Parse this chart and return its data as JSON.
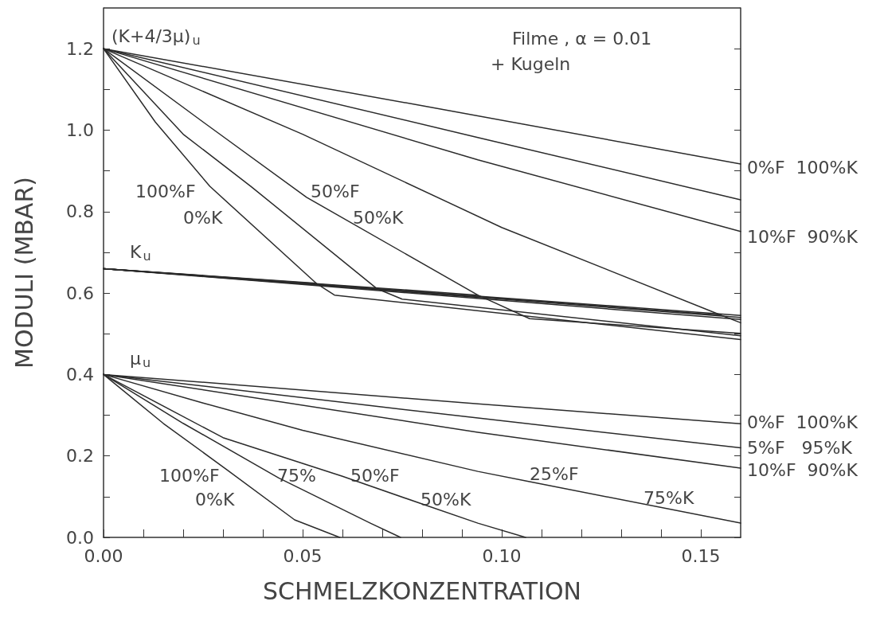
{
  "chart_data": {
    "type": "line",
    "xlabel": "SCHMELZKONZENTRATION",
    "ylabel": "MODULI (MBAR)",
    "xlim": [
      0,
      0.16
    ],
    "ylim": [
      0,
      1.3
    ],
    "xticks": [
      {
        "value": 0,
        "label": "0.00"
      },
      {
        "value": 0.01,
        "label": null
      },
      {
        "value": 0.02,
        "label": null
      },
      {
        "value": 0.03,
        "label": null
      },
      {
        "value": 0.04,
        "label": null
      },
      {
        "value": 0.05,
        "label": "0.05"
      },
      {
        "value": 0.06,
        "label": null
      },
      {
        "value": 0.07,
        "label": null
      },
      {
        "value": 0.08,
        "label": null
      },
      {
        "value": 0.09,
        "label": null
      },
      {
        "value": 0.1,
        "label": "0.10"
      },
      {
        "value": 0.11,
        "label": null
      },
      {
        "value": 0.12,
        "label": null
      },
      {
        "value": 0.13,
        "label": null
      },
      {
        "value": 0.14,
        "label": null
      },
      {
        "value": 0.15,
        "label": "0.15"
      }
    ],
    "yticks": [
      {
        "value": 0,
        "label": "0.0"
      },
      {
        "value": 0.1,
        "label": null
      },
      {
        "value": 0.2,
        "label": "0.2"
      },
      {
        "value": 0.3,
        "label": null
      },
      {
        "value": 0.4,
        "label": "0.4"
      },
      {
        "value": 0.5,
        "label": null
      },
      {
        "value": 0.6,
        "label": "0.6"
      },
      {
        "value": 0.7,
        "label": null
      },
      {
        "value": 0.8,
        "label": "0.8"
      },
      {
        "value": 0.9,
        "label": null
      },
      {
        "value": 1,
        "label": "1.0"
      },
      {
        "value": 1.1,
        "label": null
      },
      {
        "value": 1.2,
        "label": "1.2"
      }
    ],
    "grid": false,
    "marker": "none",
    "line_style": "solid",
    "series": [
      {
        "color": "#2b2b2b",
        "x": [
          0,
          0.08,
          0.16
        ],
        "values": [
          1.2,
          1.06,
          0.917
        ]
      },
      {
        "color": "#2b2b2b",
        "x": [
          0,
          0.094,
          0.16
        ],
        "values": [
          1.2,
          0.982,
          0.829
        ]
      },
      {
        "color": "#2b2b2b",
        "x": [
          0,
          0.094,
          0.16
        ],
        "values": [
          1.2,
          0.927,
          0.751
        ]
      },
      {
        "color": "#2b2b2b",
        "x": [
          0,
          0.05,
          0.1,
          0.155
        ],
        "values": [
          1.2,
          0.99,
          0.761,
          0.546
        ]
      },
      {
        "color": "#2b2b2b",
        "x": [
          0,
          0.025,
          0.051,
          0.094
        ],
        "values": [
          1.2,
          1.02,
          0.835,
          0.595
        ]
      },
      {
        "color": "#2b2b2b",
        "x": [
          0,
          0.02,
          0.037,
          0.0686
        ],
        "values": [
          1.2,
          0.99,
          0.862,
          0.611
        ]
      },
      {
        "color": "#2b2b2b",
        "x": [
          0,
          0.013,
          0.0267,
          0.0534
        ],
        "values": [
          1.2,
          1.02,
          0.862,
          0.624
        ]
      },
      {
        "color": "#2b2b2b",
        "x": [
          0,
          0.16
        ],
        "values": [
          0.66,
          0.545
        ]
      },
      {
        "color": "#2b2b2b",
        "x": [
          0,
          0.16
        ],
        "values": [
          0.66,
          0.54
        ]
      },
      {
        "color": "#2b2b2b",
        "x": [
          0,
          0.16
        ],
        "values": [
          0.66,
          0.535
        ]
      },
      {
        "color": "#2b2b2b",
        "x": [
          0,
          0.155,
          0.16
        ],
        "values": [
          0.66,
          0.546,
          0.527
        ]
      },
      {
        "color": "#2b2b2b",
        "x": [
          0,
          0.094,
          0.107,
          0.16
        ],
        "values": [
          0.66,
          0.595,
          0.537,
          0.501
        ]
      },
      {
        "color": "#2b2b2b",
        "x": [
          0,
          0.0686,
          0.075,
          0.16
        ],
        "values": [
          0.66,
          0.611,
          0.585,
          0.495
        ]
      },
      {
        "color": "#2b2b2b",
        "x": [
          0,
          0.0534,
          0.058,
          0.16
        ],
        "values": [
          0.66,
          0.624,
          0.595,
          0.486
        ]
      },
      {
        "color": "#2b2b2b",
        "x": [
          0,
          0.094,
          0.16
        ],
        "values": [
          0.4,
          0.328,
          0.279
        ]
      },
      {
        "color": "#2b2b2b",
        "x": [
          0,
          0.094,
          0.16
        ],
        "values": [
          0.4,
          0.293,
          0.22
        ]
      },
      {
        "color": "#2b2b2b",
        "x": [
          0,
          0.094,
          0.16
        ],
        "values": [
          0.4,
          0.258,
          0.17
        ]
      },
      {
        "color": "#2b2b2b",
        "x": [
          0,
          0.025,
          0.05,
          0.094,
          0.107,
          0.16
        ],
        "values": [
          0.4,
          0.33,
          0.263,
          0.162,
          0.137,
          0.035
        ]
      },
      {
        "color": "#2b2b2b",
        "x": [
          0,
          0.03,
          0.06,
          0.08,
          0.094,
          0.106
        ],
        "values": [
          0.4,
          0.245,
          0.15,
          0.082,
          0.035,
          0
        ]
      },
      {
        "color": "#2b2b2b",
        "x": [
          0,
          0.02,
          0.044,
          0.067,
          0.0746
        ],
        "values": [
          0.4,
          0.28,
          0.146,
          0.035,
          0
        ]
      },
      {
        "color": "#2b2b2b",
        "x": [
          0,
          0.015,
          0.031,
          0.048,
          0.0593
        ],
        "values": [
          0.4,
          0.28,
          0.166,
          0.043,
          0
        ]
      }
    ],
    "annotations": [
      "(K+4/3μ)$_{u}$",
      "Filme , α = 0.01",
      "+ Kugeln",
      "100%F",
      "0%K",
      "50%F",
      "50%K",
      "K$_{u}$",
      "μ$_{u}$",
      "100%F",
      "0%K",
      "75%",
      "50%F",
      "50%K",
      "25%F",
      "75%K",
      "0%F  100%K",
      "10%F  90%K",
      "0%F  100%K",
      "5%F   95%K",
      "10%F  90%K"
    ]
  }
}
